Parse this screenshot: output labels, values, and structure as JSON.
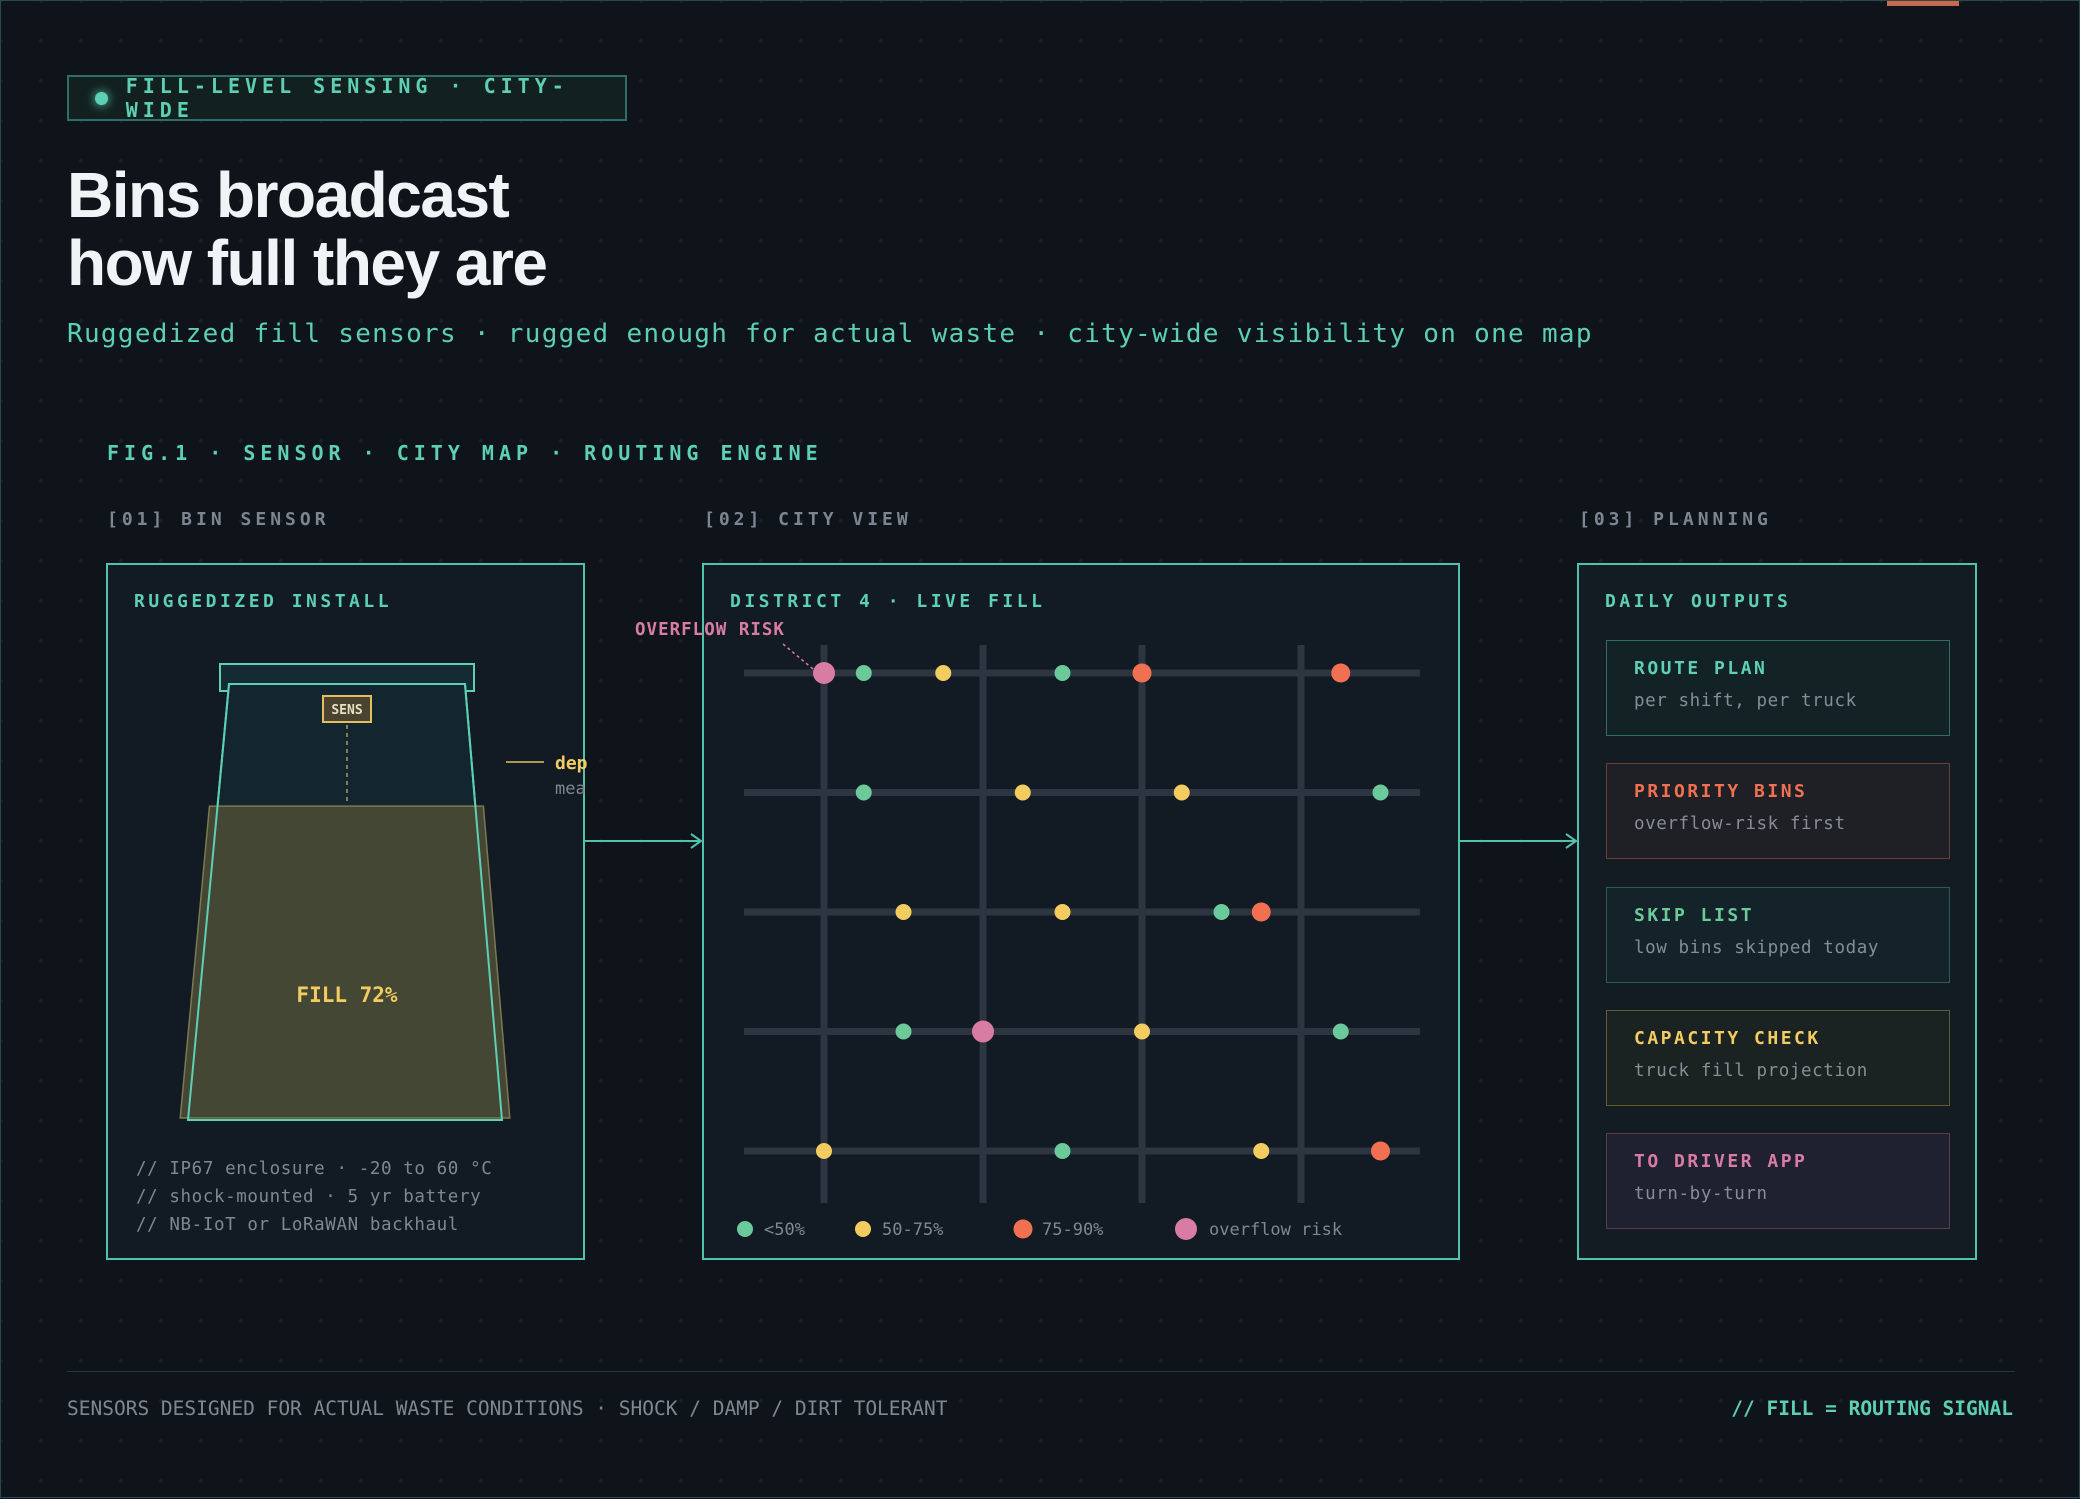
{
  "header": {
    "tag": "FILL-LEVEL SENSING · CITY-WIDE",
    "title_line1": "Bins broadcast",
    "title_line2": "how full they are",
    "subtitle": "Ruggedized fill sensors · rugged enough for actual waste · city-wide visibility on one map"
  },
  "figure": {
    "label": "FIG.1 · SENSOR · CITY MAP · ROUTING ENGINE",
    "sections": [
      "[01] BIN SENSOR",
      "[02] CITY VIEW",
      "[03] PLANNING"
    ]
  },
  "sensor": {
    "panel_title": "RUGGEDIZED INSTALL",
    "chip_label": "SENS",
    "depth_label": "depth",
    "depth_sub": "measure",
    "fill_label": "FILL 72%",
    "fill_fraction": 0.72,
    "specs": [
      "// IP67 enclosure · -20 to 60 °C",
      "// shock-mounted · 5 yr battery",
      "// NB-IoT or LoRaWAN backhaul"
    ]
  },
  "city": {
    "panel_title": "DISTRICT 4 · LIVE FILL",
    "callout": "OVERFLOW RISK",
    "legend": [
      {
        "label": "<50%",
        "level": "low"
      },
      {
        "label": "50-75%",
        "level": "mid"
      },
      {
        "label": "75-90%",
        "level": "high"
      },
      {
        "label": "overflow risk",
        "level": "overflow"
      }
    ],
    "bins": [
      {
        "street": 1,
        "avenue": 1,
        "level": "overflow"
      },
      {
        "street": 1,
        "avenue": 1.5,
        "level": "low"
      },
      {
        "street": 1,
        "avenue": 2.5,
        "level": "mid"
      },
      {
        "street": 1,
        "avenue": 4,
        "level": "low"
      },
      {
        "street": 1,
        "avenue": 5,
        "level": "high"
      },
      {
        "street": 1,
        "avenue": 7.5,
        "level": "high"
      },
      {
        "street": 2,
        "avenue": 1.5,
        "level": "low"
      },
      {
        "street": 2,
        "avenue": 3.5,
        "level": "mid"
      },
      {
        "street": 2,
        "avenue": 5.5,
        "level": "mid"
      },
      {
        "street": 2,
        "avenue": 8,
        "level": "low"
      },
      {
        "street": 3,
        "avenue": 2,
        "level": "mid"
      },
      {
        "street": 3,
        "avenue": 4,
        "level": "mid"
      },
      {
        "street": 3,
        "avenue": 6,
        "level": "low"
      },
      {
        "street": 3,
        "avenue": 6.5,
        "level": "high"
      },
      {
        "street": 4,
        "avenue": 2,
        "level": "low"
      },
      {
        "street": 4,
        "avenue": 3,
        "level": "overflow"
      },
      {
        "street": 4,
        "avenue": 5,
        "level": "mid"
      },
      {
        "street": 4,
        "avenue": 7.5,
        "level": "low"
      },
      {
        "street": 5,
        "avenue": 1,
        "level": "mid"
      },
      {
        "street": 5,
        "avenue": 4,
        "level": "low"
      },
      {
        "street": 5,
        "avenue": 6.5,
        "level": "mid"
      },
      {
        "street": 5,
        "avenue": 8,
        "level": "high"
      }
    ]
  },
  "planning": {
    "panel_title": "DAILY OUTPUTS",
    "outputs": [
      {
        "title": "ROUTE PLAN",
        "desc": "per shift, per truck"
      },
      {
        "title": "PRIORITY BINS",
        "desc": "overflow-risk first"
      },
      {
        "title": "SKIP LIST",
        "desc": "low bins skipped today"
      },
      {
        "title": "CAPACITY CHECK",
        "desc": "truck fill projection"
      },
      {
        "title": "TO DRIVER APP",
        "desc": "turn-by-turn"
      }
    ]
  },
  "footer": {
    "left": "SENSORS DESIGNED FOR ACTUAL WASTE CONDITIONS · SHOCK / DAMP / DIRT TOLERANT",
    "right": "// FILL = ROUTING SIGNAL"
  },
  "colors": {
    "accent": "#5ccfb4",
    "panel_border": "#53c2ad",
    "level_low": "#6cc99a",
    "level_mid": "#f2cc60",
    "level_high": "#f27052",
    "level_overflow": "#d97ca4",
    "fill_label": "#f2cc60"
  }
}
